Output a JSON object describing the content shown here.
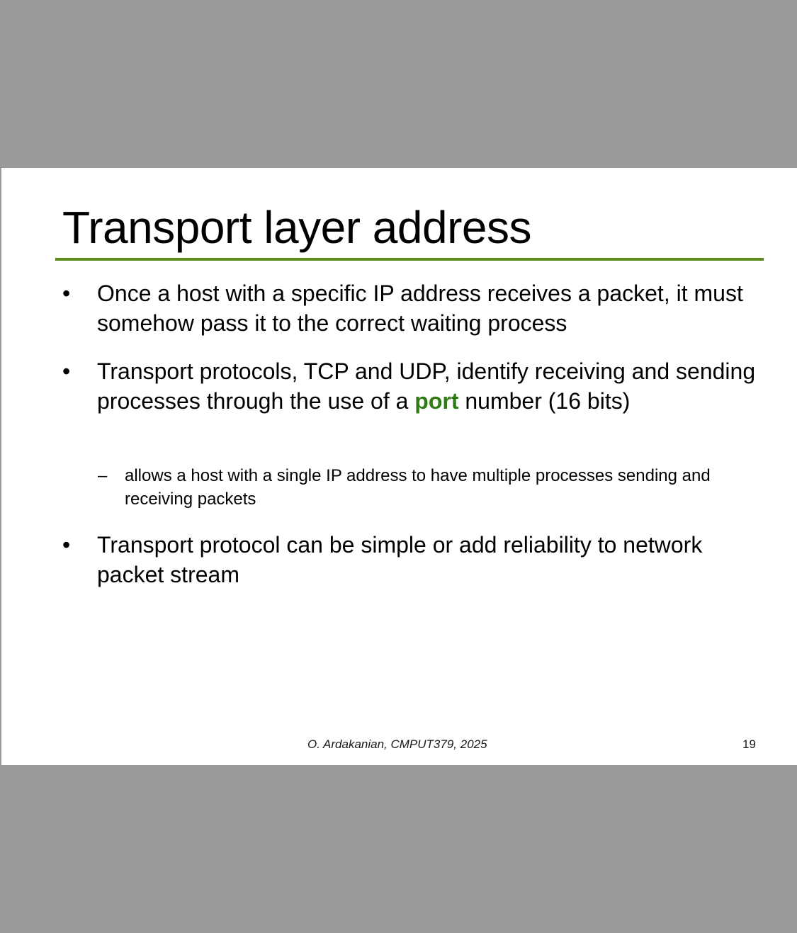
{
  "slide": {
    "title": "Transport layer address",
    "bullets": [
      {
        "marker": "•",
        "text": "Once a host with a specific IP address receives a packet, it must somehow pass it to the correct waiting process"
      },
      {
        "marker": "•",
        "text_before": "Transport protocols, TCP and UDP, identify receiving and sending processes through the use of a ",
        "highlight": "port",
        "text_after": " number (16 bits)",
        "sub_bullets": [
          {
            "marker": "–",
            "text": "allows a host with a single IP address to have multiple processes sending and receiving packets"
          }
        ]
      },
      {
        "marker": "•",
        "text": "Transport protocol can be simple or add reliability to network packet stream"
      }
    ],
    "footer": {
      "credit": "O. Ardakanian, CMPUT379, 2025",
      "page_number": "19"
    }
  },
  "colors": {
    "background": "#999999",
    "slide_background": "#ffffff",
    "accent_rule": "#5a8a1a",
    "highlight": "#2e7d14"
  }
}
